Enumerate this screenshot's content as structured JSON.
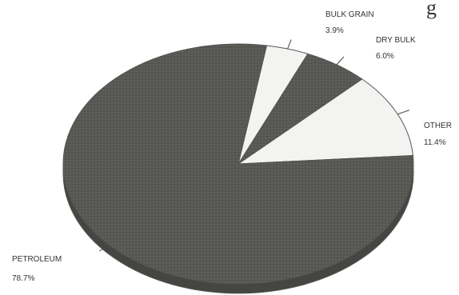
{
  "title_fragment": "g",
  "chart_data": {
    "type": "pie",
    "title": "",
    "start_angle_deg": -4,
    "direction": "counterclockwise",
    "slices": [
      {
        "label": "OTHER",
        "pct_label": "11.4%",
        "value": 11.4,
        "color": "#f3f3f1"
      },
      {
        "label": "DRY BULK",
        "pct_label": "6.0%",
        "value": 6.0,
        "color": "#585854"
      },
      {
        "label": "BULK GRAIN",
        "pct_label": "3.9%",
        "value": 3.9,
        "color": "#f3f3f1"
      },
      {
        "label": "PETROLEUM",
        "pct_label": "78.7%",
        "value": 78.7,
        "color": "#585854"
      }
    ],
    "outline_color": "#555555",
    "depth_color": "#454542"
  }
}
